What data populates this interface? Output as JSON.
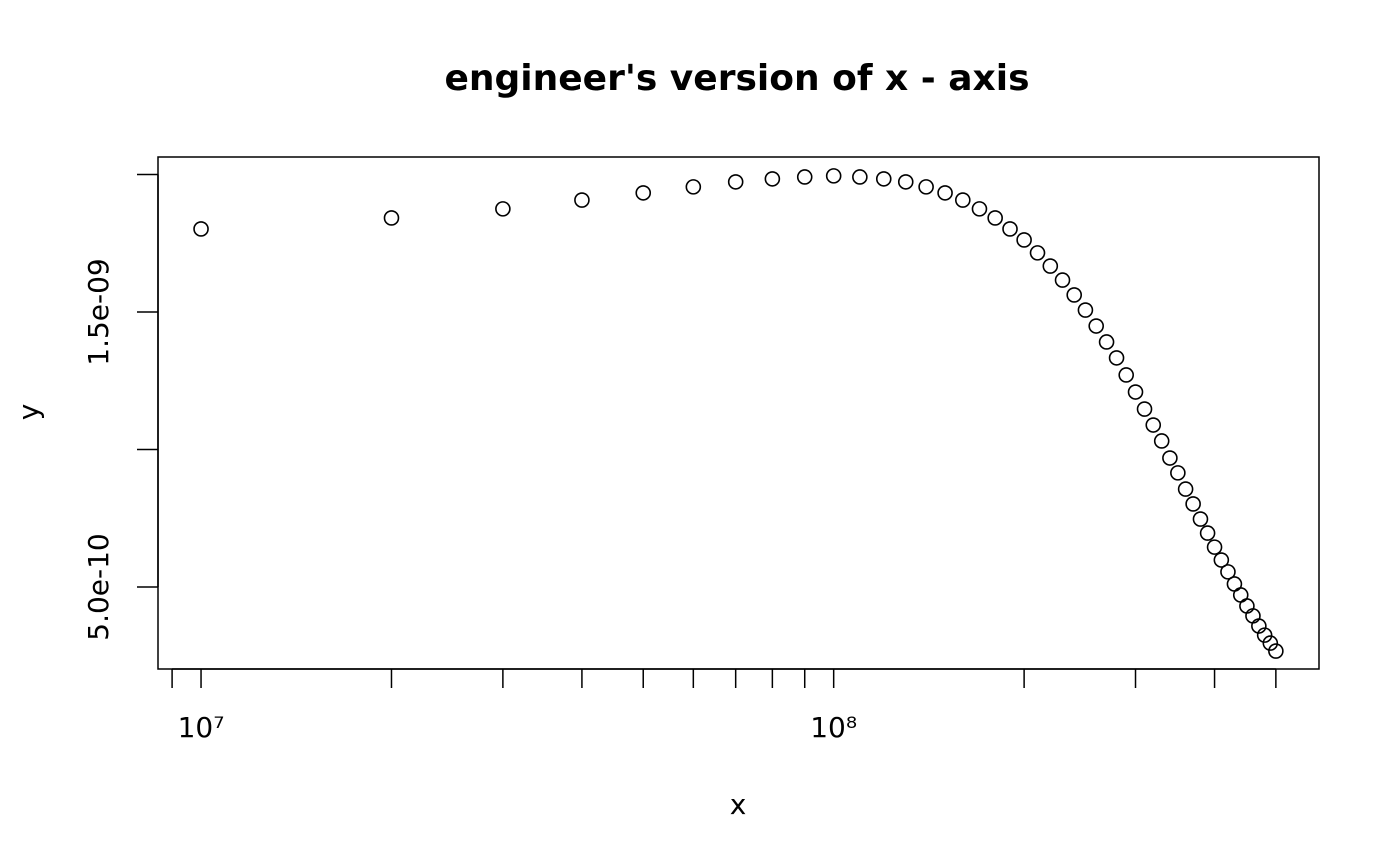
{
  "chart_data": {
    "type": "scatter",
    "title": "engineer's version of x - axis",
    "x_label": "x",
    "y_label": "y",
    "xscale": "log",
    "marker": "open-circle",
    "color": "#000000",
    "x": [
      10000000,
      20000000,
      30000000,
      40000000,
      50000000,
      60000000,
      70000000,
      80000000,
      90000000,
      100000000,
      110000000,
      120000000,
      130000000,
      140000000,
      150000000,
      160000000,
      170000000,
      180000000,
      190000000,
      200000000,
      210000000,
      220000000,
      230000000,
      240000000,
      250000000,
      260000000,
      270000000,
      280000000,
      290000000,
      300000000,
      310000000,
      320000000,
      330000000,
      340000000,
      350000000,
      360000000,
      370000000,
      380000000,
      390000000,
      400000000,
      410000000,
      420000000,
      430000000,
      440000000,
      450000000,
      460000000,
      470000000,
      480000000,
      490000000,
      500000000
    ],
    "values": [
      1.802e-09,
      1.842e-09,
      1.875e-09,
      1.907e-09,
      1.933e-09,
      1.955e-09,
      1.973e-09,
      1.984e-09,
      1.991e-09,
      1.995e-09,
      1.991e-09,
      1.984e-09,
      1.973e-09,
      1.955e-09,
      1.933e-09,
      1.907e-09,
      1.875e-09,
      1.842e-09,
      1.802e-09,
      1.762e-09,
      1.715e-09,
      1.667e-09,
      1.616e-09,
      1.562e-09,
      1.507e-09,
      1.449e-09,
      1.391e-09,
      1.333e-09,
      1.271e-09,
      1.209e-09,
      1.147e-09,
      1.089e-09,
      1.031e-09,
      9.69e-10,
      9.15e-10,
      8.56e-10,
      8.02e-10,
      7.47e-10,
      6.96e-10,
      6.45e-10,
      5.98e-10,
      5.55e-10,
      5.11e-10,
      4.71e-10,
      4.31e-10,
      3.95e-10,
      3.58e-10,
      3.25e-10,
      2.96e-10,
      2.67e-10
    ],
    "xlim": [
      8550000,
      585000000
    ],
    "ylim": [
      2.018e-10,
      2.0636e-09
    ],
    "xticks": [
      {
        "value": 9000000,
        "label": null
      },
      {
        "value": 10000000,
        "label": "10⁷"
      },
      {
        "value": 20000000,
        "label": null
      },
      {
        "value": 30000000,
        "label": null
      },
      {
        "value": 40000000,
        "label": null
      },
      {
        "value": 50000000,
        "label": null
      },
      {
        "value": 60000000,
        "label": null
      },
      {
        "value": 70000000,
        "label": null
      },
      {
        "value": 80000000,
        "label": null
      },
      {
        "value": 90000000,
        "label": null
      },
      {
        "value": 100000000,
        "label": "10⁸"
      },
      {
        "value": 200000000,
        "label": null
      },
      {
        "value": 300000000,
        "label": null
      },
      {
        "value": 400000000,
        "label": null
      },
      {
        "value": 500000000,
        "label": null
      }
    ],
    "yticks": [
      {
        "value": 5e-10,
        "label": "5.0e-10"
      },
      {
        "value": 1e-09,
        "label": null
      },
      {
        "value": 1.5e-09,
        "label": "1.5e-09"
      },
      {
        "value": 2e-09,
        "label": null
      }
    ],
    "grid": false
  }
}
